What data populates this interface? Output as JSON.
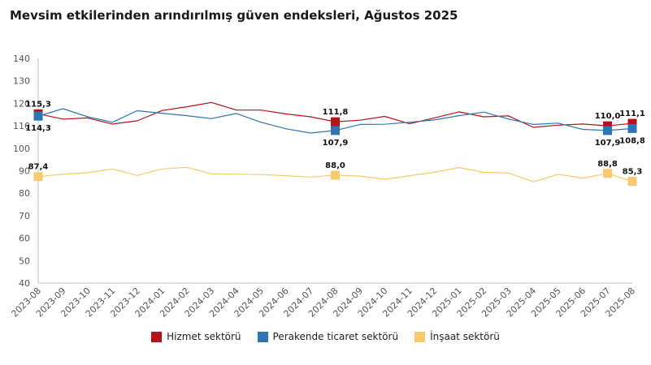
{
  "chart_data": {
    "type": "line",
    "title": "Mevsim etkilerinden arındırılmış güven endeksleri, Ağustos 2025",
    "xlabel": "",
    "ylabel": "",
    "ylim": [
      40,
      140
    ],
    "yticks": [
      40,
      50,
      60,
      70,
      80,
      90,
      100,
      110,
      120,
      130,
      140
    ],
    "grid": false,
    "legend_position": "bottom",
    "categories": [
      "2023-08",
      "2023-09",
      "2023-10",
      "2023-11",
      "2023-12",
      "2024-01",
      "2024-02",
      "2024-03",
      "2024-04",
      "2024-05",
      "2024-06",
      "2024-07",
      "2024-08",
      "2024-09",
      "2024-10",
      "2024-11",
      "2024-12",
      "2025-01",
      "2025-02",
      "2025-03",
      "2025-04",
      "2025-05",
      "2025-06",
      "2025-07",
      "2025-08"
    ],
    "series": [
      {
        "name": "Hizmet sektörü",
        "color": "#b5121b",
        "values": [
          115.3,
          113.0,
          113.5,
          110.8,
          112.2,
          116.8,
          118.5,
          120.4,
          117.0,
          117.0,
          115.3,
          114.0,
          111.8,
          112.5,
          114.2,
          110.9,
          113.5,
          116.2,
          114.0,
          114.4,
          109.3,
          110.3,
          110.8,
          110.0,
          111.1
        ]
      },
      {
        "name": "Perakende ticaret sektörü",
        "color": "#2e75b6",
        "values": [
          114.3,
          117.6,
          114.0,
          111.6,
          116.7,
          115.6,
          114.5,
          113.2,
          115.5,
          111.6,
          108.7,
          106.8,
          107.9,
          110.6,
          110.7,
          111.6,
          112.6,
          114.5,
          116.1,
          113.0,
          110.6,
          111.2,
          108.4,
          107.9,
          108.8
        ]
      },
      {
        "name": "İnşaat sektörü",
        "color": "#f7ca6e",
        "values": [
          87.4,
          88.4,
          89.1,
          90.8,
          87.9,
          90.8,
          91.5,
          88.6,
          88.5,
          88.3,
          87.8,
          87.2,
          88.0,
          87.6,
          86.2,
          87.8,
          89.3,
          91.4,
          89.3,
          89.0,
          85.1,
          88.4,
          86.7,
          88.8,
          85.3
        ]
      }
    ],
    "annotations": [
      {
        "series": 0,
        "index": 0,
        "text": "115,3",
        "pos": "above"
      },
      {
        "series": 1,
        "index": 0,
        "text": "114,3",
        "pos": "below"
      },
      {
        "series": 2,
        "index": 0,
        "text": "87,4",
        "pos": "above"
      },
      {
        "series": 0,
        "index": 12,
        "text": "111,8",
        "pos": "above"
      },
      {
        "series": 1,
        "index": 12,
        "text": "107,9",
        "pos": "below"
      },
      {
        "series": 2,
        "index": 12,
        "text": "88,0",
        "pos": "above"
      },
      {
        "series": 0,
        "index": 23,
        "text": "110,0",
        "pos": "above"
      },
      {
        "series": 1,
        "index": 23,
        "text": "107,9",
        "pos": "below"
      },
      {
        "series": 2,
        "index": 23,
        "text": "88,8",
        "pos": "above"
      },
      {
        "series": 0,
        "index": 24,
        "text": "111,1",
        "pos": "above"
      },
      {
        "series": 1,
        "index": 24,
        "text": "108,8",
        "pos": "below"
      },
      {
        "series": 2,
        "index": 24,
        "text": "85,3",
        "pos": "above"
      }
    ]
  }
}
